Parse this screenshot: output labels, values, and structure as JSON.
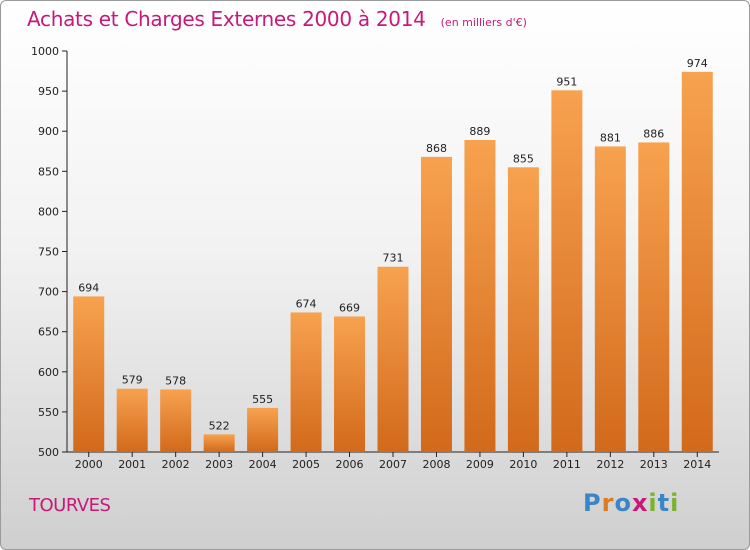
{
  "header": {
    "title": "Achats et Charges Externes 2000 à 2014",
    "subtitle": "(en milliers d'€)"
  },
  "footer": {
    "town": "TOURVES",
    "logo_text": "Proxiti",
    "logo_letters": [
      "P",
      "r",
      "o",
      "x",
      "i",
      "t",
      "i"
    ],
    "logo_colors": [
      "#3a86c8",
      "#e07a1f",
      "#3a86c8",
      "#c8187a",
      "#7bb32e",
      "#3a86c8",
      "#7bb32e"
    ]
  },
  "colors": {
    "bar_light": "#f7a24f",
    "bar_dark": "#d2691b",
    "title": "#c8187a"
  },
  "chart_data": {
    "type": "bar",
    "title": "Achats et Charges Externes 2000 à 2014",
    "subtitle": "(en milliers d'€)",
    "categories": [
      "2000",
      "2001",
      "2002",
      "2003",
      "2004",
      "2005",
      "2006",
      "2007",
      "2008",
      "2009",
      "2010",
      "2011",
      "2012",
      "2013",
      "2014"
    ],
    "values": [
      694,
      579,
      578,
      522,
      555,
      674,
      669,
      731,
      868,
      889,
      855,
      951,
      881,
      886,
      974
    ],
    "ylim": [
      500,
      1000
    ],
    "yticks": [
      500,
      550,
      600,
      650,
      700,
      750,
      800,
      850,
      900,
      950,
      1000
    ],
    "grid": false,
    "legend": "none"
  }
}
